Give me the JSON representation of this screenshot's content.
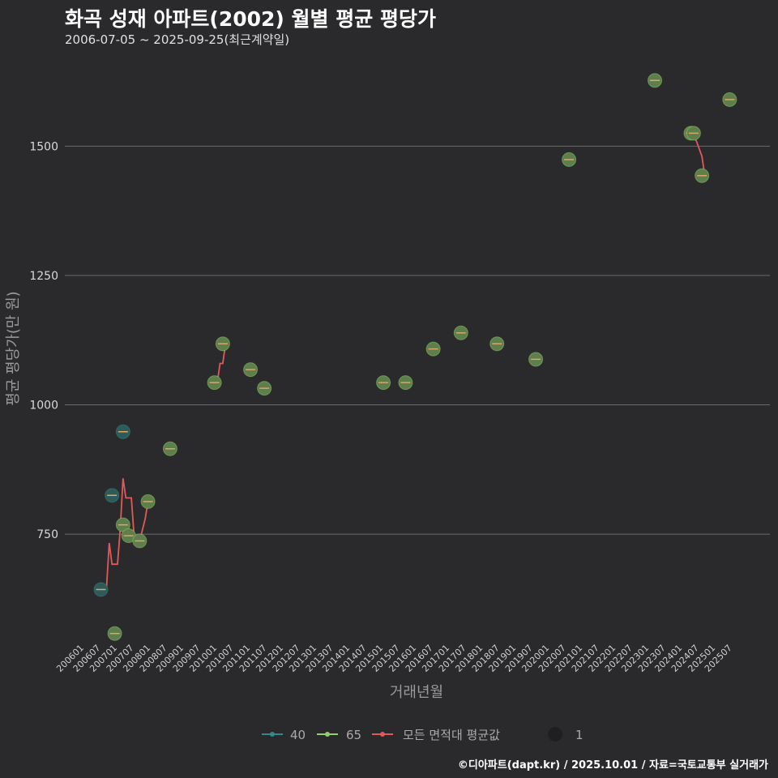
{
  "header": {
    "title": "화곡 성재 아파트(2002) 월별 평균 평당가",
    "subtitle": "2006-07-05 ~ 2025-09-25(최근계약일)"
  },
  "footer": {
    "credit": "©디아파트(dapt.kr) / 2025.10.01 / 자료=국토교통부 실거래가"
  },
  "colors": {
    "s40": "#2e8b8b",
    "s65": "#8fd16a",
    "avg": "#e05a5a",
    "point40_fill": "#2f5a5a",
    "point65_fill": "#5e7e4c",
    "grid": "#6a6a6a"
  },
  "chart_data": {
    "type": "scatter",
    "xlabel": "거래년월",
    "ylabel": "평균 평당가(만 원)",
    "x_ticks": [
      "200601",
      "200607",
      "200701",
      "200707",
      "200801",
      "200807",
      "200901",
      "200907",
      "201001",
      "201007",
      "201101",
      "201107",
      "201201",
      "201207",
      "201301",
      "201307",
      "201401",
      "201407",
      "201501",
      "201507",
      "201601",
      "201607",
      "201701",
      "201707",
      "201801",
      "201807",
      "201901",
      "201907",
      "202001",
      "202007",
      "202101",
      "202107",
      "202201",
      "202207",
      "202301",
      "202307",
      "202401",
      "202407",
      "202501",
      "202507"
    ],
    "xlim": [
      "2006-01",
      "2025-10"
    ],
    "y_ticks": [
      750,
      1000,
      1250,
      1500
    ],
    "ylim": [
      545,
      1665
    ],
    "legend": {
      "items": [
        "40",
        "65",
        "모든 면적대 평균값"
      ],
      "size_label": "1"
    },
    "series": [
      {
        "name": "40",
        "points": [
          {
            "x": "2006-07",
            "y": 643
          },
          {
            "x": "2006-11",
            "y": 825
          },
          {
            "x": "2007-03",
            "y": 948
          }
        ]
      },
      {
        "name": "65",
        "points": [
          {
            "x": "2006-12",
            "y": 558
          },
          {
            "x": "2007-03",
            "y": 768
          },
          {
            "x": "2007-05",
            "y": 747
          },
          {
            "x": "2007-09",
            "y": 737
          },
          {
            "x": "2007-12",
            "y": 813
          },
          {
            "x": "2008-08",
            "y": 915
          },
          {
            "x": "2009-12",
            "y": 1043
          },
          {
            "x": "2010-03",
            "y": 1118
          },
          {
            "x": "2011-01",
            "y": 1068
          },
          {
            "x": "2011-06",
            "y": 1032
          },
          {
            "x": "2015-01",
            "y": 1043
          },
          {
            "x": "2015-09",
            "y": 1043
          },
          {
            "x": "2016-07",
            "y": 1108
          },
          {
            "x": "2017-05",
            "y": 1139
          },
          {
            "x": "2018-06",
            "y": 1118
          },
          {
            "x": "2019-08",
            "y": 1088
          },
          {
            "x": "2020-08",
            "y": 1474
          },
          {
            "x": "2023-03",
            "y": 1627
          },
          {
            "x": "2024-04",
            "y": 1525
          },
          {
            "x": "2024-05",
            "y": 1525
          },
          {
            "x": "2024-08",
            "y": 1443
          },
          {
            "x": "2025-06",
            "y": 1590
          }
        ]
      },
      {
        "name": "모든 면적대 평균값",
        "segments": [
          [
            {
              "x": "2006-07",
              "y": 643
            },
            {
              "x": "2006-09",
              "y": 643
            },
            {
              "x": "2006-10",
              "y": 733
            },
            {
              "x": "2006-11",
              "y": 692
            },
            {
              "x": "2007-01",
              "y": 692
            },
            {
              "x": "2007-02",
              "y": 760
            },
            {
              "x": "2007-03",
              "y": 858
            },
            {
              "x": "2007-04",
              "y": 820
            },
            {
              "x": "2007-06",
              "y": 820
            },
            {
              "x": "2007-07",
              "y": 745
            },
            {
              "x": "2007-09",
              "y": 737
            },
            {
              "x": "2007-11",
              "y": 780
            },
            {
              "x": "2007-12",
              "y": 813
            },
            {
              "x": "2008-02",
              "y": 813
            }
          ],
          [
            {
              "x": "2009-12",
              "y": 1043
            },
            {
              "x": "2010-01",
              "y": 1043
            },
            {
              "x": "2010-02",
              "y": 1080
            },
            {
              "x": "2010-03",
              "y": 1080
            },
            {
              "x": "2010-04",
              "y": 1118
            },
            {
              "x": "2010-05",
              "y": 1118
            }
          ],
          [
            {
              "x": "2024-04",
              "y": 1525
            },
            {
              "x": "2024-06",
              "y": 1510
            },
            {
              "x": "2024-08",
              "y": 1480
            },
            {
              "x": "2024-09",
              "y": 1443
            },
            {
              "x": "2024-10",
              "y": 1443
            }
          ]
        ]
      }
    ]
  }
}
